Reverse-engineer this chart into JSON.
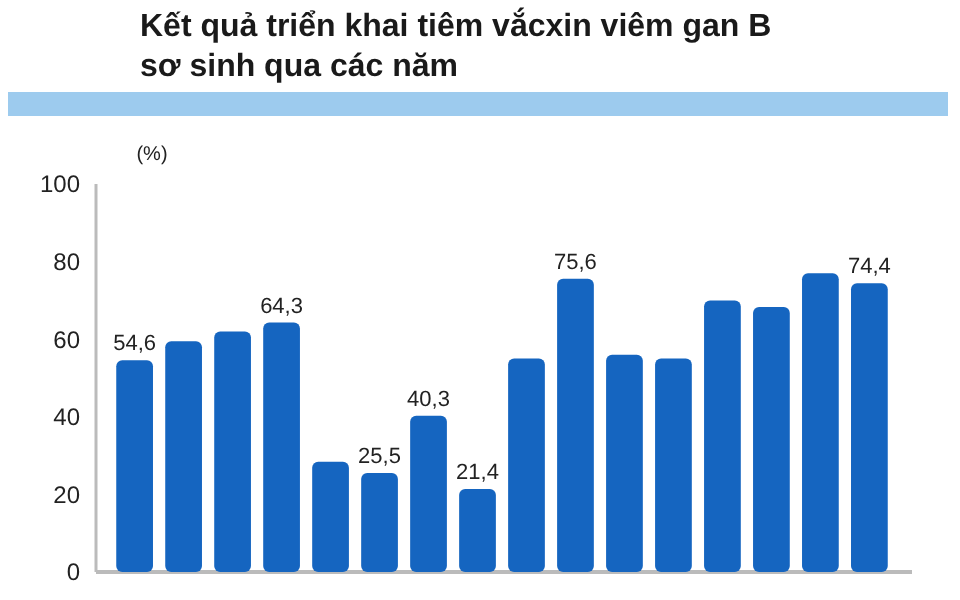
{
  "chart_data": {
    "type": "bar",
    "title": "Kết quả triển khai tiêm vắcxin viêm gan B\nsơ sinh qua các năm",
    "ylabel": "(%)",
    "categories": [
      null,
      null,
      null,
      null,
      null,
      null,
      null,
      null,
      null,
      null,
      null,
      null,
      null,
      null,
      null,
      null
    ],
    "values": [
      54.6,
      59.5,
      62,
      64.3,
      28.4,
      25.5,
      40.3,
      21.4,
      55,
      75.6,
      56,
      55,
      70,
      68.3,
      77,
      74.4
    ],
    "value_labels": [
      "54,6",
      null,
      null,
      "64,3",
      null,
      "25,5",
      "40,3",
      "21,4",
      null,
      "75,6",
      null,
      null,
      null,
      null,
      null,
      "74,4"
    ],
    "color": "#1565c0",
    "ylim": [
      0,
      100
    ],
    "yticks": [
      0,
      20,
      40,
      60,
      80,
      100
    ],
    "grid": false
  }
}
